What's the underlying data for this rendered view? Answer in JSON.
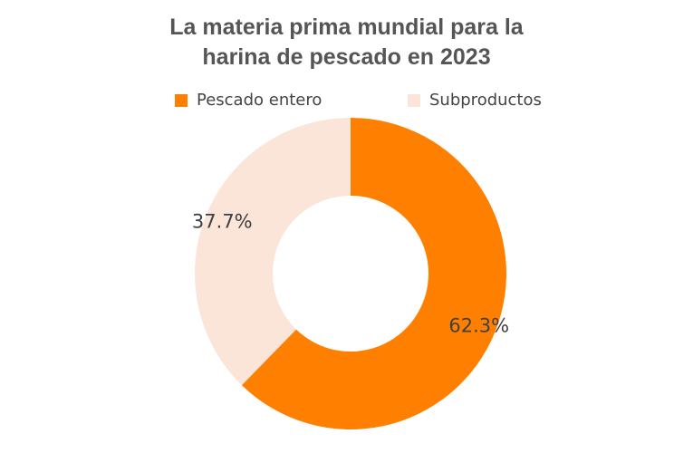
{
  "chart_data": {
    "type": "pie",
    "variant": "donut",
    "title": "La materia prima mundial para la harina de pescado en 2023",
    "title_lines": [
      "La materia prima mundial para la",
      "harina de pescado en 2023"
    ],
    "legend_position": "top",
    "slices": [
      {
        "name": "Pescado entero",
        "value": 62.3,
        "label": "62.3%",
        "color": "#ff7f00"
      },
      {
        "name": "Subproductos",
        "value": 37.7,
        "label": "37.7%",
        "color": "#fbe5d8"
      }
    ]
  }
}
